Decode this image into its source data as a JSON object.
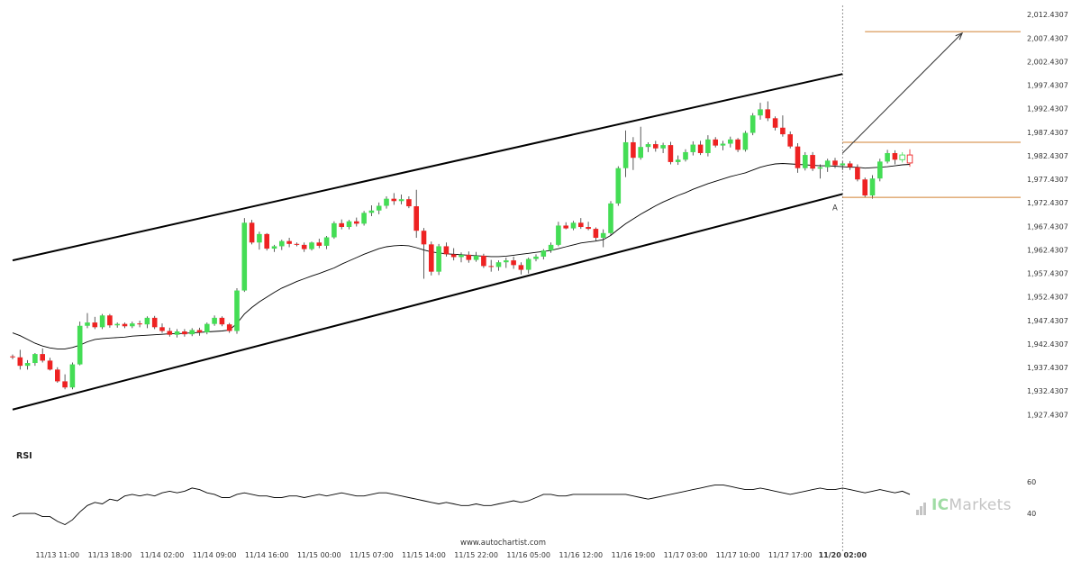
{
  "chart_data": {
    "type": "candlestick",
    "title": "",
    "rsi_label": "RSI",
    "source_text": "www.autochartist.com",
    "brand": {
      "prefix": "IC",
      "suffix": "Markets",
      "prefix_color": "#8fd896",
      "suffix_color": "#c0c0c0"
    },
    "colors": {
      "up": "#44dd55",
      "down": "#ee2222",
      "channel": "#000000",
      "ma": "#000000",
      "level": "#d08030",
      "arrow": "#333333",
      "pattern_point": "#d08030"
    },
    "price_axis": {
      "ticks": [
        "2,012.4307",
        "2,007.4307",
        "2,002.4307",
        "1,997.4307",
        "1,992.4307",
        "1,987.4307",
        "1,982.4307",
        "1,977.4307",
        "1,972.4307",
        "1,967.4307",
        "1,962.4307",
        "1,957.4307",
        "1,952.4307",
        "1,947.4307",
        "1,942.4307",
        "1,937.4307",
        "1,932.4307",
        "1,927.4307"
      ],
      "tick_values": [
        2012.4307,
        2007.4307,
        2002.4307,
        1997.4307,
        1992.4307,
        1987.4307,
        1982.4307,
        1977.4307,
        1972.4307,
        1967.4307,
        1962.4307,
        1957.4307,
        1952.4307,
        1947.4307,
        1942.4307,
        1937.4307,
        1932.4307,
        1927.4307
      ],
      "range": [
        1925.2,
        2014.0
      ]
    },
    "rsi_axis": {
      "ticks": [
        "60",
        "40"
      ],
      "tick_values": [
        60,
        40
      ],
      "range": [
        31,
        65
      ]
    },
    "time_axis": {
      "labels": [
        "11/13 11:00",
        "11/13 18:00",
        "11/14 02:00",
        "11/14 09:00",
        "11/14 16:00",
        "11/15 00:00",
        "11/15 07:00",
        "11/15 14:00",
        "11/15 22:00",
        "11/16 05:00",
        "11/16 12:00",
        "11/16 19:00",
        "11/17 03:00",
        "11/17 10:00",
        "11/17 17:00",
        "11/20 02:00"
      ],
      "label_bars": [
        6,
        13,
        20,
        27,
        34,
        41,
        48,
        55,
        62,
        69,
        76,
        83,
        90,
        97,
        104,
        111
      ],
      "highlight": "11/20 02:00"
    },
    "candles": [
      [
        1939.8,
        1940.2,
        1939.2,
        1939.6
      ],
      [
        1939.6,
        1941.2,
        1937.0,
        1937.8
      ],
      [
        1937.8,
        1939.0,
        1937.0,
        1938.4
      ],
      [
        1938.4,
        1940.5,
        1937.8,
        1940.3
      ],
      [
        1940.3,
        1941.5,
        1938.5,
        1938.9
      ],
      [
        1938.9,
        1939.5,
        1936.8,
        1937.0
      ],
      [
        1937.0,
        1937.5,
        1934.2,
        1934.5
      ],
      [
        1934.5,
        1936.0,
        1932.8,
        1933.2
      ],
      [
        1933.2,
        1938.5,
        1932.8,
        1938.1
      ],
      [
        1938.1,
        1947.2,
        1937.9,
        1946.3
      ],
      [
        1946.3,
        1949.0,
        1945.8,
        1947.0
      ],
      [
        1947.0,
        1948.2,
        1945.6,
        1946.0
      ],
      [
        1946.0,
        1948.8,
        1945.6,
        1948.5
      ],
      [
        1948.5,
        1948.8,
        1945.9,
        1946.4
      ],
      [
        1946.4,
        1947.0,
        1945.9,
        1946.7
      ],
      [
        1946.7,
        1947.0,
        1945.8,
        1946.2
      ],
      [
        1946.2,
        1947.2,
        1945.8,
        1946.8
      ],
      [
        1946.8,
        1947.4,
        1946.0,
        1946.6
      ],
      [
        1946.6,
        1948.3,
        1945.8,
        1948.0
      ],
      [
        1948.0,
        1948.4,
        1945.6,
        1946.0
      ],
      [
        1946.0,
        1946.8,
        1944.8,
        1945.2
      ],
      [
        1945.2,
        1945.9,
        1944.0,
        1944.4
      ],
      [
        1944.4,
        1945.6,
        1943.8,
        1945.1
      ],
      [
        1945.1,
        1945.6,
        1944.0,
        1944.5
      ],
      [
        1944.5,
        1945.8,
        1944.1,
        1945.4
      ],
      [
        1945.4,
        1945.9,
        1944.2,
        1944.9
      ],
      [
        1944.9,
        1947.0,
        1944.5,
        1946.7
      ],
      [
        1946.7,
        1948.5,
        1946.3,
        1948.0
      ],
      [
        1948.0,
        1948.3,
        1946.2,
        1946.6
      ],
      [
        1946.6,
        1946.9,
        1944.8,
        1945.2
      ],
      [
        1945.2,
        1954.3,
        1944.6,
        1953.8
      ],
      [
        1953.8,
        1969.2,
        1953.5,
        1968.2
      ],
      [
        1968.2,
        1968.8,
        1963.6,
        1964.0
      ],
      [
        1964.0,
        1966.3,
        1962.5,
        1965.8
      ],
      [
        1965.8,
        1966.0,
        1962.3,
        1962.7
      ],
      [
        1962.7,
        1963.5,
        1962.0,
        1963.2
      ],
      [
        1963.2,
        1964.6,
        1962.4,
        1964.3
      ],
      [
        1964.3,
        1965.0,
        1963.0,
        1963.7
      ],
      [
        1963.7,
        1964.0,
        1963.2,
        1963.5
      ],
      [
        1963.5,
        1964.0,
        1962.0,
        1962.6
      ],
      [
        1962.6,
        1964.2,
        1962.3,
        1964.0
      ],
      [
        1964.0,
        1964.8,
        1962.8,
        1963.3
      ],
      [
        1963.3,
        1965.4,
        1962.6,
        1965.1
      ],
      [
        1965.1,
        1968.5,
        1964.8,
        1968.1
      ],
      [
        1968.1,
        1968.9,
        1966.8,
        1967.3
      ],
      [
        1967.3,
        1968.8,
        1966.8,
        1968.5
      ],
      [
        1968.5,
        1969.3,
        1967.4,
        1968.0
      ],
      [
        1968.0,
        1970.7,
        1967.6,
        1970.3
      ],
      [
        1970.3,
        1971.9,
        1969.6,
        1970.8
      ],
      [
        1970.8,
        1972.5,
        1970.0,
        1971.8
      ],
      [
        1971.8,
        1973.8,
        1971.2,
        1973.3
      ],
      [
        1973.3,
        1974.5,
        1972.0,
        1972.8
      ],
      [
        1972.8,
        1974.2,
        1972.1,
        1973.2
      ],
      [
        1973.2,
        1973.8,
        1971.3,
        1971.7
      ],
      [
        1971.7,
        1975.2,
        1965.0,
        1966.5
      ],
      [
        1966.5,
        1967.1,
        1956.3,
        1963.6
      ],
      [
        1963.6,
        1964.2,
        1957.0,
        1957.8
      ],
      [
        1957.8,
        1963.7,
        1957.1,
        1963.2
      ],
      [
        1963.2,
        1964.0,
        1961.0,
        1961.5
      ],
      [
        1961.5,
        1962.8,
        1960.2,
        1960.9
      ],
      [
        1960.9,
        1961.9,
        1959.8,
        1961.4
      ],
      [
        1961.4,
        1962.1,
        1959.7,
        1960.3
      ],
      [
        1960.3,
        1962.0,
        1959.9,
        1961.2
      ],
      [
        1961.2,
        1961.6,
        1958.6,
        1959.0
      ],
      [
        1959.0,
        1960.3,
        1957.8,
        1958.8
      ],
      [
        1958.8,
        1960.2,
        1958.0,
        1959.8
      ],
      [
        1959.8,
        1960.8,
        1958.6,
        1960.2
      ],
      [
        1960.2,
        1961.0,
        1958.4,
        1959.2
      ],
      [
        1959.2,
        1959.8,
        1957.2,
        1958.2
      ],
      [
        1958.2,
        1960.8,
        1957.4,
        1960.5
      ],
      [
        1960.5,
        1961.5,
        1960.0,
        1961.0
      ],
      [
        1961.0,
        1962.6,
        1960.4,
        1962.3
      ],
      [
        1962.3,
        1964.0,
        1961.8,
        1963.5
      ],
      [
        1963.5,
        1968.4,
        1963.2,
        1967.6
      ],
      [
        1967.6,
        1968.3,
        1966.8,
        1967.0
      ],
      [
        1967.0,
        1968.6,
        1966.6,
        1968.2
      ],
      [
        1968.2,
        1969.2,
        1966.9,
        1967.3
      ],
      [
        1967.3,
        1968.4,
        1966.6,
        1966.9
      ],
      [
        1966.9,
        1967.2,
        1964.3,
        1965.0
      ],
      [
        1965.0,
        1966.8,
        1963.0,
        1966.0
      ],
      [
        1966.0,
        1972.8,
        1965.6,
        1972.3
      ],
      [
        1972.3,
        1980.2,
        1971.8,
        1979.8
      ],
      [
        1979.8,
        1987.8,
        1977.9,
        1985.3
      ],
      [
        1985.3,
        1986.4,
        1979.4,
        1982.0
      ],
      [
        1982.0,
        1988.6,
        1981.6,
        1984.3
      ],
      [
        1984.3,
        1985.3,
        1983.2,
        1984.9
      ],
      [
        1984.9,
        1985.6,
        1983.3,
        1984.0
      ],
      [
        1984.0,
        1985.2,
        1983.0,
        1984.7
      ],
      [
        1984.7,
        1985.4,
        1980.6,
        1981.1
      ],
      [
        1981.1,
        1982.5,
        1980.5,
        1981.6
      ],
      [
        1981.6,
        1983.8,
        1981.2,
        1983.2
      ],
      [
        1983.2,
        1985.5,
        1982.5,
        1984.8
      ],
      [
        1984.8,
        1985.6,
        1982.6,
        1983.0
      ],
      [
        1983.0,
        1986.8,
        1982.3,
        1985.9
      ],
      [
        1985.9,
        1986.4,
        1984.2,
        1984.6
      ],
      [
        1984.6,
        1985.6,
        1983.6,
        1985.0
      ],
      [
        1985.0,
        1986.5,
        1984.2,
        1985.9
      ],
      [
        1985.9,
        1986.2,
        1983.2,
        1983.7
      ],
      [
        1983.7,
        1987.7,
        1983.3,
        1987.3
      ],
      [
        1987.3,
        1991.5,
        1986.8,
        1991.0
      ],
      [
        1991.0,
        1993.7,
        1990.1,
        1992.3
      ],
      [
        1992.3,
        1994.0,
        1989.8,
        1990.4
      ],
      [
        1990.4,
        1990.8,
        1987.8,
        1988.4
      ],
      [
        1988.4,
        1991.0,
        1986.5,
        1987.0
      ],
      [
        1987.0,
        1987.6,
        1984.0,
        1984.4
      ],
      [
        1984.4,
        1985.1,
        1978.8,
        1979.8
      ],
      [
        1979.8,
        1983.2,
        1979.3,
        1982.6
      ],
      [
        1982.6,
        1983.2,
        1979.2,
        1979.7
      ],
      [
        1979.7,
        1980.6,
        1977.6,
        1980.0
      ],
      [
        1980.0,
        1981.8,
        1979.0,
        1981.4
      ],
      [
        1981.4,
        1982.0,
        1979.8,
        1980.4
      ],
      [
        1980.4,
        1981.2,
        1979.4,
        1980.8
      ],
      [
        1980.8,
        1981.3,
        1979.4,
        1980.0
      ],
      [
        1980.0,
        1980.6,
        1977.0,
        1977.4
      ],
      [
        1977.4,
        1977.8,
        1973.6,
        1974.0
      ],
      [
        1974.0,
        1978.3,
        1973.3,
        1977.6
      ],
      [
        1977.6,
        1981.8,
        1977.0,
        1981.2
      ],
      [
        1981.2,
        1983.7,
        1980.8,
        1983.0
      ],
      [
        1983.0,
        1983.6,
        1980.6,
        1981.6
      ],
      [
        1981.6,
        1983.2,
        1981.0,
        1982.6
      ],
      [
        1982.6,
        1983.8,
        1980.1,
        1980.9
      ]
    ],
    "hollow_candles": [
      119,
      120
    ],
    "ma": [
      1944.8,
      1944.2,
      1943.4,
      1942.6,
      1942.0,
      1941.6,
      1941.4,
      1941.4,
      1941.7,
      1942.2,
      1942.9,
      1943.4,
      1943.6,
      1943.7,
      1943.8,
      1943.9,
      1944.1,
      1944.2,
      1944.3,
      1944.4,
      1944.5,
      1944.6,
      1944.6,
      1944.7,
      1944.8,
      1944.9,
      1945.0,
      1945.1,
      1945.2,
      1945.4,
      1946.8,
      1948.8,
      1950.2,
      1951.4,
      1952.4,
      1953.4,
      1954.3,
      1955.0,
      1955.7,
      1956.3,
      1956.9,
      1957.4,
      1958.0,
      1958.6,
      1959.4,
      1960.1,
      1960.8,
      1961.5,
      1962.1,
      1962.7,
      1963.1,
      1963.3,
      1963.4,
      1963.3,
      1962.9,
      1962.4,
      1962.0,
      1961.8,
      1961.6,
      1961.5,
      1961.4,
      1961.3,
      1961.2,
      1961.1,
      1961.0,
      1961.0,
      1961.1,
      1961.3,
      1961.5,
      1961.7,
      1961.9,
      1962.1,
      1962.3,
      1962.7,
      1963.1,
      1963.5,
      1963.9,
      1964.1,
      1964.3,
      1964.6,
      1965.5,
      1966.8,
      1968.0,
      1969.0,
      1970.0,
      1970.9,
      1971.8,
      1972.6,
      1973.3,
      1974.0,
      1974.6,
      1975.3,
      1975.9,
      1976.5,
      1977.0,
      1977.5,
      1978.0,
      1978.4,
      1978.8,
      1979.4,
      1980.0,
      1980.4,
      1980.7,
      1980.8,
      1980.7,
      1980.6,
      1980.5,
      1980.4,
      1980.3,
      1980.3,
      1980.2,
      1980.1,
      1980.0,
      1980.0,
      1979.8,
      1979.9,
      1980.0,
      1980.1,
      1980.3,
      1980.5,
      1980.6
    ],
    "rsi": [
      38,
      40,
      40,
      40,
      38,
      38,
      35,
      33,
      36,
      41,
      45,
      47,
      46,
      49,
      48,
      51,
      52,
      51,
      52,
      51,
      53,
      54,
      53,
      54,
      56,
      55,
      53,
      52,
      50,
      50,
      52,
      53,
      52,
      51,
      51,
      50,
      50,
      51,
      51,
      50,
      51,
      52,
      51,
      52,
      53,
      52,
      51,
      51,
      52,
      53,
      53,
      52,
      51,
      50,
      49,
      48,
      47,
      46,
      47,
      46,
      45,
      45,
      46,
      45,
      45,
      46,
      47,
      48,
      47,
      48,
      50,
      52,
      52,
      51,
      51,
      52,
      52,
      52,
      52,
      52,
      52,
      52,
      52,
      51,
      50,
      49,
      50,
      51,
      52,
      53,
      54,
      55,
      56,
      57,
      58,
      58,
      57,
      56,
      55,
      55,
      56,
      55,
      54,
      53,
      52,
      53,
      54,
      55,
      56,
      55,
      55,
      56,
      55,
      54,
      53,
      54,
      55,
      54,
      53,
      54,
      52
    ],
    "channel": {
      "upper": {
        "from": [
          0,
          1960.2
        ],
        "to": [
          111,
          1999.8
        ]
      },
      "lower": {
        "from": [
          0,
          1928.5
        ],
        "to": [
          111,
          1974.3
        ]
      }
    },
    "levels": [
      {
        "value": 2008.8,
        "from_bar": 114
      },
      {
        "value": 1985.3,
        "from_bar": 111
      },
      {
        "value": 1973.6,
        "from_bar": 111
      }
    ],
    "projection_arrow": {
      "from": [
        111,
        1983.0
      ],
      "to": [
        127,
        2008.5
      ]
    },
    "pattern_point": {
      "label": "A",
      "bar": 110,
      "value": 1970.8
    },
    "vertical_marker_bar": 111
  }
}
